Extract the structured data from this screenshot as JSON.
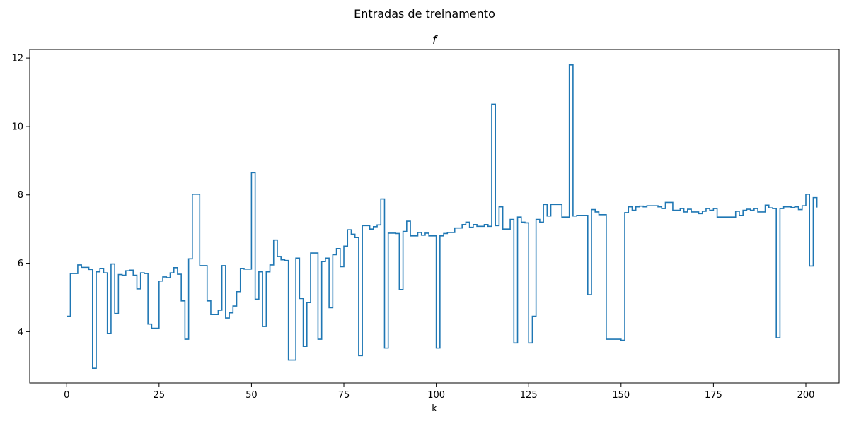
{
  "figure": {
    "suptitle": "Entradas de treinamento"
  },
  "chart_data": {
    "type": "line",
    "drawstyle": "steps-post",
    "title": "f",
    "xlabel": "k",
    "ylabel": "",
    "xlim": [
      -10,
      209
    ],
    "ylim": [
      2.5,
      12.25
    ],
    "xticks": [
      0,
      25,
      50,
      75,
      100,
      125,
      150,
      175,
      200
    ],
    "yticks": [
      4,
      6,
      8,
      10,
      12
    ],
    "grid": false,
    "line_color": "#1f77b4",
    "series": [
      {
        "x_start": 0,
        "values": [
          4.45,
          5.7,
          5.7,
          5.95,
          5.88,
          5.88,
          5.82,
          2.93,
          5.75,
          5.85,
          5.72,
          3.95,
          5.98,
          4.53,
          5.67,
          5.65,
          5.78,
          5.8,
          5.65,
          5.25,
          5.72,
          5.7,
          4.22,
          4.1,
          4.1,
          5.48,
          5.6,
          5.58,
          5.72,
          5.87,
          5.68,
          4.9,
          3.78,
          6.13,
          8.02,
          8.02,
          5.93,
          5.93,
          4.9,
          4.5,
          4.5,
          4.63,
          5.93,
          4.4,
          4.55,
          4.75,
          5.17,
          5.85,
          5.83,
          5.83,
          8.65,
          4.95,
          5.75,
          4.15,
          5.75,
          5.95,
          6.68,
          6.2,
          6.1,
          6.08,
          3.17,
          3.17,
          6.15,
          4.97,
          3.57,
          4.85,
          6.3,
          6.3,
          3.78,
          6.05,
          6.15,
          4.7,
          6.25,
          6.43,
          5.9,
          6.5,
          6.98,
          6.85,
          6.75,
          3.3,
          7.1,
          7.1,
          7.0,
          7.07,
          7.12,
          7.88,
          3.52,
          6.88,
          6.88,
          6.87,
          5.23,
          6.93,
          7.23,
          6.8,
          6.8,
          6.9,
          6.82,
          6.88,
          6.8,
          6.8,
          3.52,
          6.8,
          6.87,
          6.9,
          6.9,
          7.03,
          7.03,
          7.13,
          7.2,
          7.05,
          7.13,
          7.08,
          7.08,
          7.13,
          7.08,
          10.65,
          7.1,
          7.65,
          7.0,
          7.0,
          7.28,
          3.67,
          7.35,
          7.2,
          7.18,
          3.67,
          4.45,
          7.28,
          7.2,
          7.72,
          7.38,
          7.72,
          7.72,
          7.72,
          7.35,
          7.35,
          11.8,
          7.38,
          7.4,
          7.4,
          7.4,
          5.08,
          7.57,
          7.5,
          7.42,
          7.42,
          3.78,
          3.78,
          3.78,
          3.78,
          3.75,
          7.48,
          7.65,
          7.55,
          7.65,
          7.67,
          7.65,
          7.68,
          7.68,
          7.68,
          7.65,
          7.6,
          7.78,
          7.78,
          7.55,
          7.55,
          7.6,
          7.5,
          7.58,
          7.5,
          7.5,
          7.45,
          7.52,
          7.6,
          7.55,
          7.6,
          7.35,
          7.35,
          7.35,
          7.35,
          7.35,
          7.52,
          7.4,
          7.55,
          7.58,
          7.55,
          7.6,
          7.5,
          7.5,
          7.7,
          7.62,
          7.6,
          3.82,
          7.6,
          7.65,
          7.65,
          7.63,
          7.65,
          7.57,
          7.68,
          8.02,
          5.92,
          7.92,
          7.63
        ]
      }
    ]
  }
}
